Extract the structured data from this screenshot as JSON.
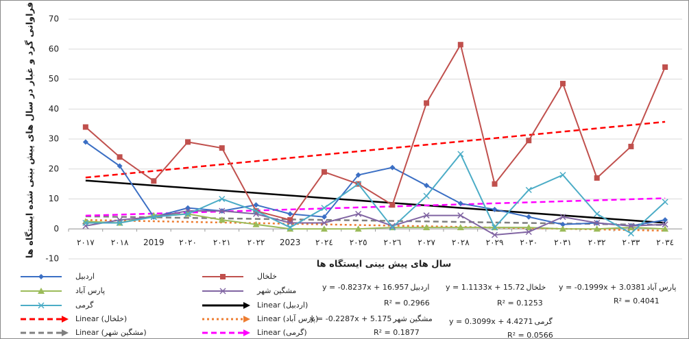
{
  "chart_data": {
    "type": "line",
    "y_label": "فراوانی گرد و غبار در سال های پیش بینی شده ایستگاه ها",
    "x_label": "سال های پیش بینی ایستگاه ها",
    "categories": [
      "٢٠١٧",
      "٢٠١٨",
      "2019",
      "٢٠٢٠",
      "٢٠٢١",
      "٢٠٢٢",
      "2023",
      "٢٠٢٤",
      "٢٠٢٥",
      "٢٠٢٦",
      "٢٠٢٧",
      "٢٠٢٨",
      "٢٠٢٩",
      "٢٠٣٠",
      "٢٠٣١",
      "٢٠٣٢",
      "٢٠٣٣",
      "٢٠٣٤"
    ],
    "ylim": [
      -10,
      70
    ],
    "yticks": [
      -10,
      0,
      10,
      20,
      30,
      40,
      50,
      60,
      70
    ],
    "grid": true,
    "series": [
      {
        "name": "اردبیل",
        "color": "#3b6fc4",
        "marker": "diamond",
        "values": [
          29,
          21,
          4,
          7,
          6,
          8,
          5,
          4,
          18,
          20.5,
          14.5,
          8.5,
          6.5,
          4,
          1.5,
          2,
          1,
          3
        ],
        "trend": {
          "name": "Linear (اردبیل)",
          "color": "#000000",
          "dash": "solid",
          "equation": "y = -0.8237x + 16.957",
          "r2": "R² = 0.2966"
        }
      },
      {
        "name": "خلخال",
        "color": "#c0504d",
        "marker": "square",
        "values": [
          34,
          24,
          16,
          29,
          27,
          6,
          3,
          19,
          15,
          8,
          42,
          61.5,
          15,
          29.5,
          48.5,
          17,
          27.5,
          54
        ],
        "trend": {
          "name": "Linear (خلخال)",
          "color": "#ff0000",
          "dash": "dashed",
          "equation": "y = 1.1133x + 15.72",
          "r2": "R² = 0.1253"
        }
      },
      {
        "name": "پارس آباد",
        "color": "#9bbb59",
        "marker": "triangle",
        "values": [
          2.5,
          2,
          4.5,
          5,
          3,
          1.5,
          0,
          0,
          0,
          0.5,
          0.5,
          0.5,
          0.5,
          0.5,
          0,
          0,
          0.5,
          0
        ],
        "trend": {
          "name": "Linear (پارس آباد)",
          "color": "#ed7d31",
          "dash": "dotted",
          "equation": "y = -0.1999x + 3.0381",
          "r2": "R² = 0.4041"
        }
      },
      {
        "name": "مشگین شهر",
        "color": "#8064a2",
        "marker": "x",
        "values": [
          1,
          3,
          4,
          6,
          6,
          5,
          2,
          2,
          5,
          1,
          4.5,
          4.5,
          -2,
          -1,
          4,
          2,
          1,
          1.5
        ],
        "trend": {
          "name": "Linear (مشگین شهر)",
          "color": "#7f7f7f",
          "dash": "dashed",
          "equation": "y = -0.2287x + 5.175",
          "r2": "R² = 0.1877"
        }
      },
      {
        "name": "گرمی",
        "color": "#4bacc6",
        "marker": "x",
        "values": [
          2,
          2,
          4,
          5,
          10,
          6,
          0.5,
          7,
          15,
          0.5,
          11,
          25,
          0.5,
          13,
          18,
          5,
          -1.5,
          9
        ],
        "trend": {
          "name": "Linear (گرمی)",
          "color": "#ff00ff",
          "dash": "dashed",
          "equation": "y = 0.3099x + 4.4271",
          "r2": "R² = 0.0566"
        }
      }
    ]
  }
}
